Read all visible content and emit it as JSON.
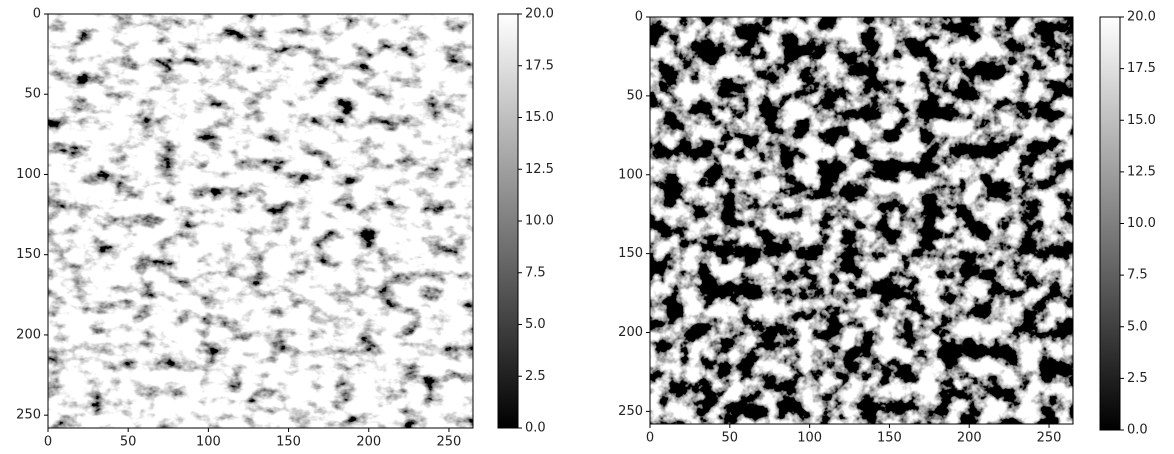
{
  "chart_data": [
    {
      "type": "image",
      "xlim": [
        0,
        265
      ],
      "ylim": [
        258,
        0
      ],
      "xticks": [
        0,
        50,
        100,
        150,
        200,
        250
      ],
      "yticks": [
        0,
        50,
        100,
        150,
        200,
        250
      ],
      "clim": [
        0,
        20
      ],
      "cticks": [
        {
          "value": 0,
          "label": "0.0"
        },
        2.5,
        {
          "value": 5,
          "label": "5.0"
        },
        7.5,
        {
          "value": 10,
          "label": "10.0"
        },
        12.5,
        {
          "value": 15,
          "label": "15.0"
        },
        17.5,
        {
          "value": 20,
          "label": "20.0"
        }
      ],
      "colormap": [
        "#000000",
        "#ffffff"
      ]
    },
    {
      "type": "image",
      "xlim": [
        0,
        265
      ],
      "ylim": [
        258,
        0
      ],
      "xticks": [
        0,
        50,
        100,
        150,
        200,
        250
      ],
      "yticks": [
        0,
        50,
        100,
        150,
        200,
        250
      ],
      "clim": [
        0,
        20
      ],
      "cticks": [
        {
          "value": 0,
          "label": "0.0"
        },
        2.5,
        {
          "value": 5,
          "label": "5.0"
        },
        7.5,
        {
          "value": 10,
          "label": "10.0"
        },
        12.5,
        {
          "value": 15,
          "label": "15.0"
        },
        17.5,
        {
          "value": 20,
          "label": "20.0"
        }
      ],
      "colormap": [
        "#000000",
        "#ffffff"
      ]
    }
  ]
}
